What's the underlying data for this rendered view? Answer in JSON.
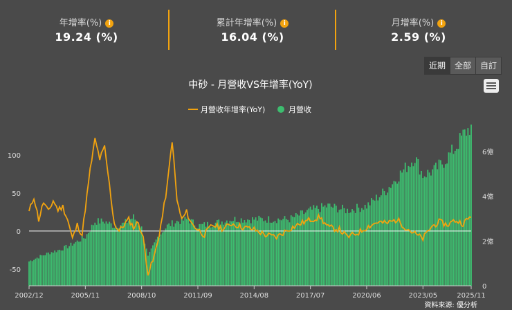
{
  "stats": [
    {
      "label": "年增率(%)",
      "value": "19.24 (%)"
    },
    {
      "label": "累計年增率(%)",
      "value": "16.04 (%)"
    },
    {
      "label": "月增率(%)",
      "value": "2.59 (%)"
    }
  ],
  "info_glyph": "i",
  "range_buttons": [
    "近期",
    "全部",
    "自訂"
  ],
  "colors": {
    "yoy_line": "#f2a30f",
    "revenue_bar": "#3dbd6f",
    "background": "#4a4a4a"
  },
  "icons": {
    "menu": "hamburger-menu-icon",
    "info": "info-icon"
  },
  "source": "資料來源: 優分析",
  "chart_data": {
    "type": "bar",
    "title": "中砂 - 月營收VS年增率(YoY)",
    "legend": [
      "月營收年增率(YoY)",
      "月營收"
    ],
    "legend_position": "top-center",
    "x_ticks": [
      "2002/12",
      "2005/11",
      "2008/10",
      "2011/09",
      "2014/08",
      "2017/07",
      "2020/06",
      "2023/05",
      "2025/11"
    ],
    "x_range": [
      "2002/12",
      "2025/11"
    ],
    "y_left": {
      "ticks": [
        "100",
        "50",
        "0",
        "-50"
      ],
      "range": [
        -72,
        140
      ]
    },
    "y_right": {
      "ticks": [
        "6億",
        "4億",
        "2億",
        "0"
      ],
      "range": [
        0,
        7.2
      ]
    },
    "grid": false,
    "series": [
      {
        "name": "月營收年增率(YoY)",
        "type": "line",
        "axis": "left",
        "points": [
          [
            "2002/12",
            25
          ],
          [
            "2003/03",
            45
          ],
          [
            "2003/06",
            15
          ],
          [
            "2003/09",
            38
          ],
          [
            "2003/12",
            25
          ],
          [
            "2004/03",
            40
          ],
          [
            "2004/06",
            28
          ],
          [
            "2004/09",
            32
          ],
          [
            "2004/12",
            15
          ],
          [
            "2005/03",
            -10
          ],
          [
            "2005/06",
            8
          ],
          [
            "2005/09",
            -5
          ],
          [
            "2005/11",
            30
          ],
          [
            "2006/02",
            80
          ],
          [
            "2006/05",
            120
          ],
          [
            "2006/08",
            95
          ],
          [
            "2006/11",
            110
          ],
          [
            "2007/02",
            60
          ],
          [
            "2007/05",
            10
          ],
          [
            "2007/08",
            0
          ],
          [
            "2007/11",
            8
          ],
          [
            "2008/02",
            15
          ],
          [
            "2008/05",
            5
          ],
          [
            "2008/08",
            12
          ],
          [
            "2008/11",
            -10
          ],
          [
            "2009/02",
            -55
          ],
          [
            "2009/05",
            -40
          ],
          [
            "2009/08",
            -15
          ],
          [
            "2009/11",
            20
          ],
          [
            "2010/02",
            60
          ],
          [
            "2010/05",
            120
          ],
          [
            "2010/08",
            40
          ],
          [
            "2010/11",
            15
          ],
          [
            "2011/02",
            25
          ],
          [
            "2011/05",
            10
          ],
          [
            "2011/09",
            2
          ],
          [
            "2012/01",
            -5
          ],
          [
            "2012/06",
            8
          ],
          [
            "2013/01",
            3
          ],
          [
            "2013/06",
            10
          ],
          [
            "2014/01",
            5
          ],
          [
            "2014/08",
            2
          ],
          [
            "2015/03",
            -5
          ],
          [
            "2015/10",
            -8
          ],
          [
            "2016/05",
            2
          ],
          [
            "2017/01",
            10
          ],
          [
            "2017/07",
            15
          ],
          [
            "2018/01",
            18
          ],
          [
            "2018/06",
            5
          ],
          [
            "2019/01",
            2
          ],
          [
            "2019/06",
            -8
          ],
          [
            "2020/01",
            -2
          ],
          [
            "2020/06",
            5
          ],
          [
            "2021/01",
            12
          ],
          [
            "2021/06",
            10
          ],
          [
            "2022/01",
            15
          ],
          [
            "2022/06",
            5
          ],
          [
            "2023/01",
            -5
          ],
          [
            "2023/05",
            -10
          ],
          [
            "2023/10",
            5
          ],
          [
            "2024/03",
            12
          ],
          [
            "2024/08",
            8
          ],
          [
            "2025/01",
            14
          ],
          [
            "2025/06",
            10
          ],
          [
            "2025/11",
            19.24
          ]
        ]
      },
      {
        "name": "月營收",
        "type": "bar",
        "axis": "right",
        "unit": "億",
        "points": [
          [
            "2002/12",
            1.1
          ],
          [
            "2003/06",
            1.3
          ],
          [
            "2004/01",
            1.5
          ],
          [
            "2004/06",
            1.6
          ],
          [
            "2005/01",
            1.8
          ],
          [
            "2005/11",
            2.2
          ],
          [
            "2006/05",
            2.9
          ],
          [
            "2006/11",
            2.9
          ],
          [
            "2007/05",
            2.7
          ],
          [
            "2007/11",
            2.8
          ],
          [
            "2008/05",
            3.1
          ],
          [
            "2008/10",
            2.6
          ],
          [
            "2009/02",
            1.3
          ],
          [
            "2009/08",
            2.2
          ],
          [
            "2010/02",
            2.7
          ],
          [
            "2010/08",
            2.9
          ],
          [
            "2011/03",
            3.0
          ],
          [
            "2011/09",
            2.7
          ],
          [
            "2012/06",
            2.8
          ],
          [
            "2013/06",
            3.0
          ],
          [
            "2014/08",
            3.0
          ],
          [
            "2015/06",
            3.0
          ],
          [
            "2016/06",
            3.0
          ],
          [
            "2017/07",
            3.4
          ],
          [
            "2018/06",
            3.6
          ],
          [
            "2019/06",
            3.4
          ],
          [
            "2020/06",
            3.6
          ],
          [
            "2021/06",
            4.3
          ],
          [
            "2022/06",
            5.3
          ],
          [
            "2022/12",
            5.8
          ],
          [
            "2023/05",
            5.0
          ],
          [
            "2023/12",
            5.2
          ],
          [
            "2024/06",
            5.6
          ],
          [
            "2025/01",
            6.2
          ],
          [
            "2025/06",
            6.8
          ],
          [
            "2025/11",
            7.2
          ]
        ]
      }
    ]
  }
}
